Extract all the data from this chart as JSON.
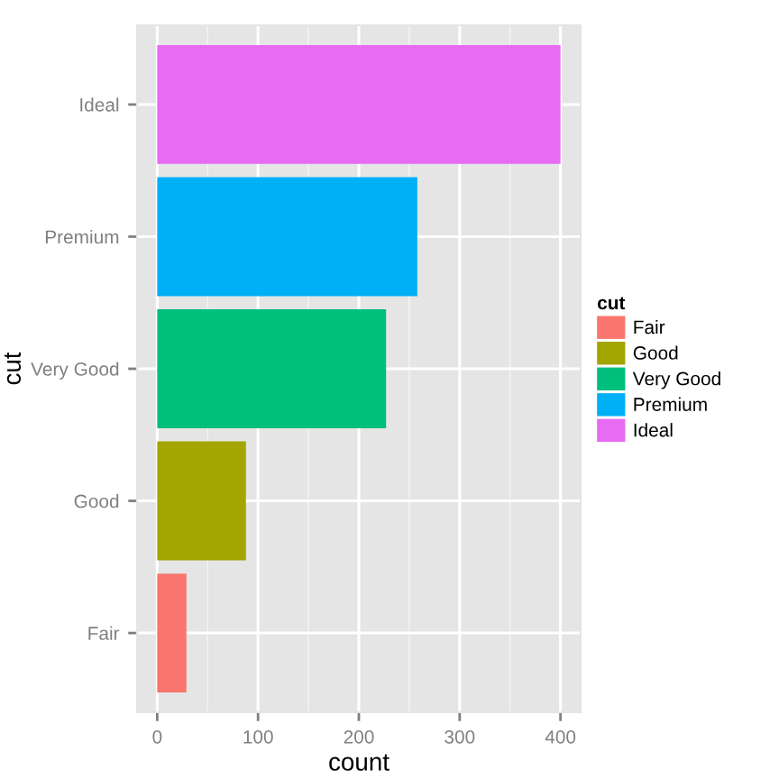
{
  "chart_data": {
    "type": "bar",
    "orientation": "horizontal",
    "categories": [
      "Ideal",
      "Premium",
      "Very Good",
      "Good",
      "Fair"
    ],
    "series": [
      {
        "name": "Fair",
        "color": "#f8766d",
        "values": [
          null,
          null,
          null,
          null,
          29
        ]
      },
      {
        "name": "Good",
        "color": "#a3a500",
        "values": [
          null,
          null,
          null,
          88,
          null
        ]
      },
      {
        "name": "Very Good",
        "color": "#00bf7d",
        "values": [
          null,
          null,
          227,
          null,
          null
        ]
      },
      {
        "name": "Premium",
        "color": "#00b0f6",
        "values": [
          null,
          258,
          null,
          null,
          null
        ]
      },
      {
        "name": "Ideal",
        "color": "#e76bf3",
        "values": [
          400,
          null,
          null,
          null,
          null
        ]
      }
    ],
    "xlabel": "count",
    "ylabel": "cut",
    "legend_title": "cut",
    "legend": "right",
    "xlim": [
      -20,
      420
    ],
    "xticks": [
      0,
      100,
      200,
      300,
      400
    ],
    "grid": true
  }
}
